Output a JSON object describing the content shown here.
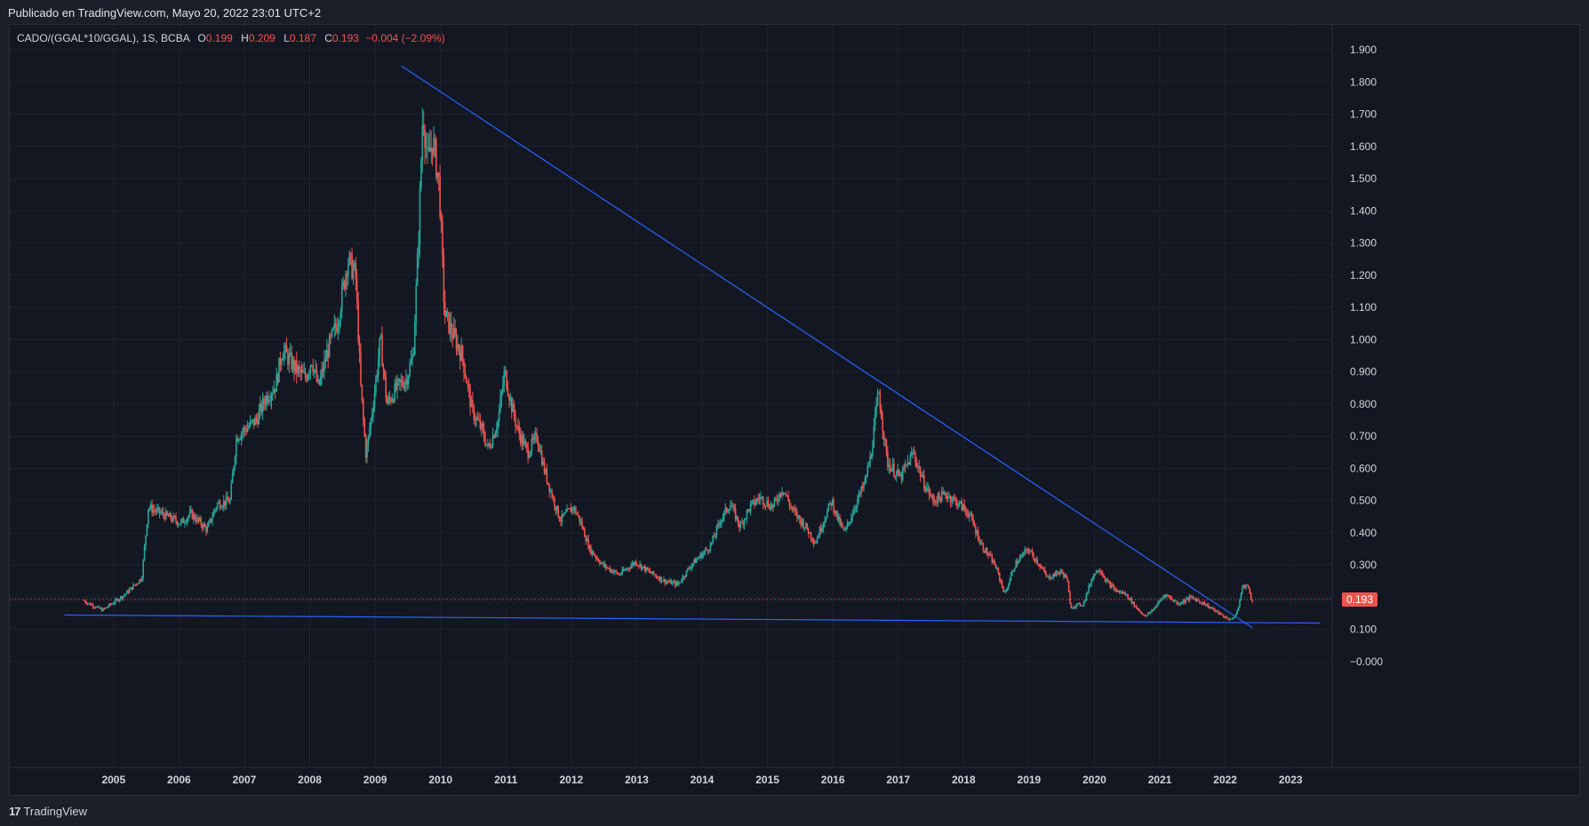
{
  "header": {
    "published": "Publicado en TradingView.com, Mayo 20, 2022 23:01 UTC+2"
  },
  "legend": {
    "symbol": "CADO/(GGAL*10/GGAL), 1S, BCBA",
    "o_label": "O",
    "o_value": "0.199",
    "h_label": "H",
    "h_value": "0.209",
    "l_label": "L",
    "l_value": "0.187",
    "c_label": "C",
    "c_value": "0.193",
    "change": "−0.004 (−2.09%)"
  },
  "footer": {
    "logo_glyph": "17",
    "brand": "TradingView"
  },
  "colors": {
    "background": "#131722",
    "up": "#26a69a",
    "down": "#ef5350",
    "trendline": "#2962ff",
    "grid": "#1e222d",
    "price_tag": "#ef5350"
  },
  "chart_data": {
    "type": "candlestick",
    "timeframe": "1S",
    "y_ticks": [
      "1.900",
      "1.800",
      "1.700",
      "1.600",
      "1.500",
      "1.400",
      "1.300",
      "1.200",
      "1.100",
      "1.000",
      "0.900",
      "0.800",
      "0.700",
      "0.600",
      "0.500",
      "0.400",
      "0.300",
      "0.200",
      "0.100",
      "−0.000"
    ],
    "y_range": [
      -0.04,
      1.95
    ],
    "x_ticks": [
      "2005",
      "2006",
      "2007",
      "2008",
      "2009",
      "2010",
      "2011",
      "2012",
      "2013",
      "2014",
      "2015",
      "2016",
      "2017",
      "2018",
      "2019",
      "2020",
      "2021",
      "2022",
      "2023"
    ],
    "x_range": [
      2004.0,
      2024.0
    ],
    "last_price": "0.193",
    "last_price_value": 0.193,
    "price_path": [
      [
        2004.55,
        0.19
      ],
      [
        2004.85,
        0.16
      ],
      [
        2005.2,
        0.21
      ],
      [
        2005.45,
        0.26
      ],
      [
        2005.55,
        0.48
      ],
      [
        2005.75,
        0.46
      ],
      [
        2006.05,
        0.43
      ],
      [
        2006.2,
        0.46
      ],
      [
        2006.45,
        0.41
      ],
      [
        2006.6,
        0.49
      ],
      [
        2006.8,
        0.5
      ],
      [
        2006.9,
        0.7
      ],
      [
        2007.2,
        0.75
      ],
      [
        2007.35,
        0.82
      ],
      [
        2007.5,
        0.86
      ],
      [
        2007.6,
        0.97
      ],
      [
        2007.8,
        0.91
      ],
      [
        2007.95,
        0.88
      ],
      [
        2008.05,
        0.94
      ],
      [
        2008.15,
        0.85
      ],
      [
        2008.3,
        0.97
      ],
      [
        2008.45,
        1.06
      ],
      [
        2008.6,
        1.25
      ],
      [
        2008.72,
        1.2
      ],
      [
        2008.8,
        0.85
      ],
      [
        2008.88,
        0.64
      ],
      [
        2009.0,
        0.82
      ],
      [
        2009.1,
        1.0
      ],
      [
        2009.2,
        0.8
      ],
      [
        2009.35,
        0.85
      ],
      [
        2009.5,
        0.88
      ],
      [
        2009.6,
        0.95
      ],
      [
        2009.68,
        1.3
      ],
      [
        2009.75,
        1.72
      ],
      [
        2009.82,
        1.55
      ],
      [
        2009.9,
        1.62
      ],
      [
        2010.0,
        1.48
      ],
      [
        2010.08,
        1.08
      ],
      [
        2010.2,
        1.02
      ],
      [
        2010.35,
        0.95
      ],
      [
        2010.5,
        0.78
      ],
      [
        2010.65,
        0.72
      ],
      [
        2010.75,
        0.66
      ],
      [
        2010.9,
        0.75
      ],
      [
        2011.0,
        0.9
      ],
      [
        2011.1,
        0.8
      ],
      [
        2011.2,
        0.72
      ],
      [
        2011.35,
        0.65
      ],
      [
        2011.5,
        0.7
      ],
      [
        2011.6,
        0.6
      ],
      [
        2011.75,
        0.5
      ],
      [
        2011.85,
        0.44
      ],
      [
        2012.05,
        0.48
      ],
      [
        2012.15,
        0.44
      ],
      [
        2012.3,
        0.35
      ],
      [
        2012.5,
        0.3
      ],
      [
        2012.75,
        0.27
      ],
      [
        2013.0,
        0.31
      ],
      [
        2013.2,
        0.28
      ],
      [
        2013.45,
        0.25
      ],
      [
        2013.65,
        0.24
      ],
      [
        2013.85,
        0.3
      ],
      [
        2014.0,
        0.33
      ],
      [
        2014.15,
        0.36
      ],
      [
        2014.3,
        0.44
      ],
      [
        2014.45,
        0.49
      ],
      [
        2014.6,
        0.42
      ],
      [
        2014.75,
        0.48
      ],
      [
        2014.9,
        0.51
      ],
      [
        2015.1,
        0.48
      ],
      [
        2015.25,
        0.54
      ],
      [
        2015.4,
        0.47
      ],
      [
        2015.6,
        0.42
      ],
      [
        2015.75,
        0.37
      ],
      [
        2015.9,
        0.45
      ],
      [
        2016.0,
        0.5
      ],
      [
        2016.1,
        0.44
      ],
      [
        2016.2,
        0.4
      ],
      [
        2016.35,
        0.48
      ],
      [
        2016.5,
        0.55
      ],
      [
        2016.6,
        0.64
      ],
      [
        2016.72,
        0.84
      ],
      [
        2016.85,
        0.62
      ],
      [
        2017.05,
        0.57
      ],
      [
        2017.25,
        0.65
      ],
      [
        2017.4,
        0.56
      ],
      [
        2017.55,
        0.5
      ],
      [
        2017.75,
        0.52
      ],
      [
        2017.95,
        0.49
      ],
      [
        2018.1,
        0.46
      ],
      [
        2018.3,
        0.36
      ],
      [
        2018.5,
        0.3
      ],
      [
        2018.65,
        0.21
      ],
      [
        2018.8,
        0.3
      ],
      [
        2019.0,
        0.35
      ],
      [
        2019.15,
        0.31
      ],
      [
        2019.3,
        0.26
      ],
      [
        2019.5,
        0.28
      ],
      [
        2019.6,
        0.26
      ],
      [
        2019.65,
        0.17
      ],
      [
        2019.85,
        0.18
      ],
      [
        2020.0,
        0.27
      ],
      [
        2020.1,
        0.29
      ],
      [
        2020.2,
        0.25
      ],
      [
        2020.35,
        0.22
      ],
      [
        2020.5,
        0.21
      ],
      [
        2020.65,
        0.17
      ],
      [
        2020.8,
        0.14
      ],
      [
        2020.95,
        0.17
      ],
      [
        2021.1,
        0.21
      ],
      [
        2021.3,
        0.18
      ],
      [
        2021.5,
        0.2
      ],
      [
        2021.7,
        0.18
      ],
      [
        2021.85,
        0.16
      ],
      [
        2022.0,
        0.14
      ],
      [
        2022.1,
        0.13
      ],
      [
        2022.2,
        0.15
      ],
      [
        2022.28,
        0.23
      ],
      [
        2022.35,
        0.24
      ],
      [
        2022.4,
        0.21
      ],
      [
        2022.42,
        0.193
      ]
    ],
    "trendlines": [
      {
        "name": "descending-resistance",
        "from": [
          2009.4,
          1.85
        ],
        "to": [
          2022.42,
          0.105
        ]
      },
      {
        "name": "horizontal-support",
        "from": [
          2004.25,
          0.145
        ],
        "to": [
          2023.45,
          0.12
        ]
      }
    ]
  }
}
